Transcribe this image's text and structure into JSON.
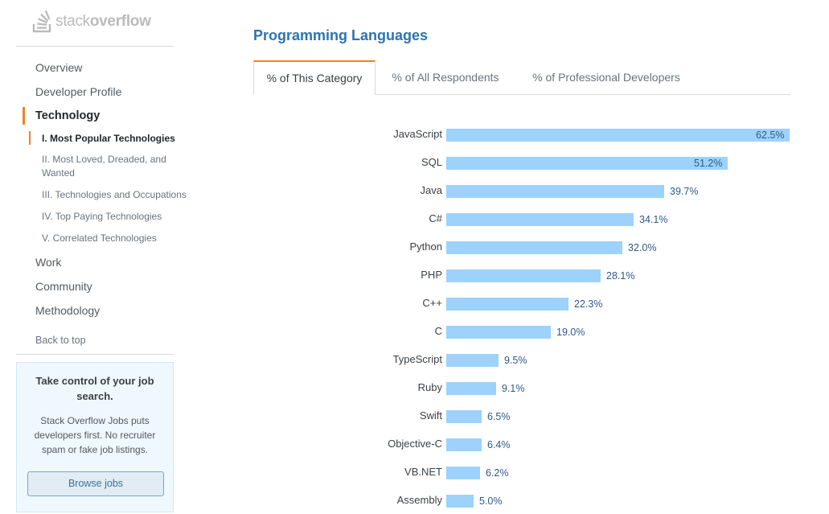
{
  "logo": {
    "prefix": "stack",
    "suffix": "overflow"
  },
  "sidebar": {
    "nav": [
      {
        "label": "Overview"
      },
      {
        "label": "Developer Profile"
      },
      {
        "label": "Technology"
      },
      {
        "label": "Work"
      },
      {
        "label": "Community"
      },
      {
        "label": "Methodology"
      }
    ],
    "sub_nav": [
      {
        "label": "I. Most Popular Technologies"
      },
      {
        "label": "II. Most Loved, Dreaded, and Wanted"
      },
      {
        "label": "III. Technologies and Occupations"
      },
      {
        "label": "IV. Top Paying Technologies"
      },
      {
        "label": "V. Correlated Technologies"
      }
    ],
    "active_nav": "Technology",
    "active_sub": "I. Most Popular Technologies",
    "back_to_top": "Back to top"
  },
  "promo": {
    "title": "Take control of your job search.",
    "body": "Stack Overflow Jobs puts developers first. No recruiter spam or fake job listings.",
    "button": "Browse jobs"
  },
  "main": {
    "title": "Programming Languages",
    "tabs": [
      {
        "label": "% of This Category",
        "active": true
      },
      {
        "label": "% of All Respondents",
        "active": false
      },
      {
        "label": "% of Professional Developers",
        "active": false
      }
    ]
  },
  "colors": {
    "accent": "#f48024",
    "bar": "#9cd2fb",
    "title": "#2d74ae",
    "value": "#2d5a88"
  },
  "chart_data": {
    "type": "bar",
    "orientation": "horizontal",
    "categories": [
      "JavaScript",
      "SQL",
      "Java",
      "C#",
      "Python",
      "PHP",
      "C++",
      "C",
      "TypeScript",
      "Ruby",
      "Swift",
      "Objective-C",
      "VB.NET",
      "Assembly"
    ],
    "values": [
      62.5,
      51.2,
      39.7,
      34.1,
      32.0,
      28.1,
      22.3,
      19.0,
      9.5,
      9.1,
      6.5,
      6.4,
      6.2,
      5.0
    ],
    "value_labels": [
      "62.5%",
      "51.2%",
      "39.7%",
      "34.1%",
      "32.0%",
      "28.1%",
      "22.3%",
      "19.0%",
      "9.5%",
      "9.1%",
      "6.5%",
      "6.4%",
      "6.2%",
      "5.0%"
    ],
    "max": 62.5
  }
}
